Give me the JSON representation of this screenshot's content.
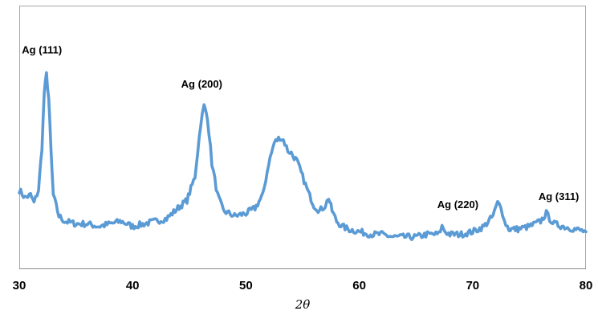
{
  "chart_data": {
    "type": "line",
    "xlabel": "2θ",
    "ylabel": "",
    "xlim": [
      30,
      80
    ],
    "ylim": [
      0,
      100
    ],
    "xticks": [
      "30",
      "40",
      "50",
      "60",
      "70",
      "80"
    ],
    "grid": false,
    "legend": "none",
    "series": [
      {
        "color": "#5b9bd5",
        "x": [
          30.0,
          30.5,
          31.0,
          31.3,
          31.7,
          32.0,
          32.2,
          32.4,
          32.6,
          32.8,
          33.0,
          33.5,
          34.0,
          35.0,
          36.0,
          37.0,
          38.0,
          39.0,
          40.0,
          41.0,
          42.0,
          43.0,
          44.0,
          44.8,
          45.5,
          46.0,
          46.3,
          46.6,
          47.0,
          47.5,
          48.0,
          49.0,
          50.0,
          50.8,
          51.5,
          52.0,
          52.5,
          53.0,
          53.3,
          53.7,
          54.0,
          54.5,
          55.0,
          55.5,
          56.0,
          56.5,
          57.0,
          57.3,
          57.6,
          58.0,
          58.5,
          59.0,
          60.0,
          61.0,
          62.0,
          63.0,
          64.0,
          65.0,
          66.0,
          67.0,
          67.3,
          67.6,
          68.0,
          69.0,
          70.0,
          71.0,
          71.8,
          72.2,
          72.5,
          72.8,
          73.2,
          74.0,
          75.0,
          76.0,
          76.5,
          76.8,
          77.2,
          78.0,
          79.0,
          80.0
        ],
        "y": [
          30,
          27,
          28,
          25,
          30,
          46,
          67,
          74,
          65,
          45,
          28,
          20,
          18,
          17,
          17,
          16,
          17,
          18,
          16,
          17,
          18,
          19,
          23,
          26,
          35,
          55,
          62,
          58,
          40,
          28,
          22,
          20,
          21,
          23,
          28,
          40,
          48,
          50,
          49,
          45,
          44,
          41,
          35,
          29,
          24,
          22,
          24,
          27,
          22,
          18,
          16,
          15,
          14,
          13,
          13,
          12,
          12,
          12,
          13,
          13,
          16,
          14,
          13,
          13,
          14,
          16,
          20,
          25,
          24,
          18,
          15,
          15,
          16,
          18,
          21,
          19,
          17,
          16,
          15,
          14
        ]
      }
    ],
    "annotations": [
      {
        "text": "Ag (111)",
        "x": 32.0,
        "y": 82
      },
      {
        "text": "Ag (200)",
        "x": 46.1,
        "y": 69
      },
      {
        "text": "Ag (220)",
        "x": 68.7,
        "y": 23
      },
      {
        "text": "Ag (311)",
        "x": 77.6,
        "y": 26
      }
    ]
  }
}
